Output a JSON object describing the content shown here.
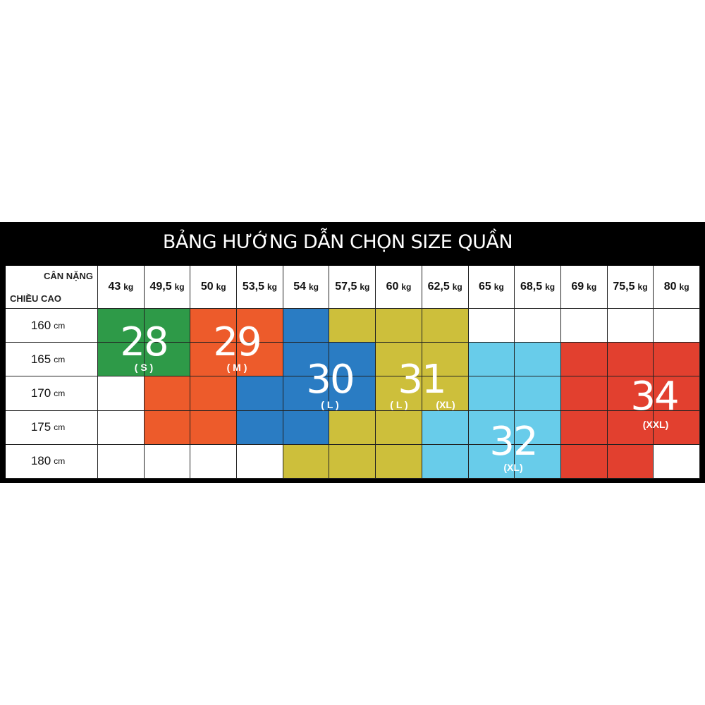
{
  "title": "BẢNG HƯỚNG DẪN CHỌN SIZE QUẦN",
  "header": {
    "weight_label": "CÂN NẶNG",
    "height_label": "CHIỀU CAO"
  },
  "colors": {
    "S": "#2e9a48",
    "M": "#ed5b2b",
    "L": "#2a7cc3",
    "Y": "#cdbf3b",
    "XL": "#68ccea",
    "XXL": "#e2402f",
    "W": "#ffffff"
  },
  "chart_data": {
    "type": "table",
    "title": "BẢNG HƯỚNG DẪN CHỌN SIZE QUẦN",
    "columns": [
      {
        "value": "43",
        "unit": "kg"
      },
      {
        "value": "49,5",
        "unit": "kg"
      },
      {
        "value": "50",
        "unit": "kg"
      },
      {
        "value": "53,5",
        "unit": "kg"
      },
      {
        "value": "54",
        "unit": "kg"
      },
      {
        "value": "57,5",
        "unit": "kg"
      },
      {
        "value": "60",
        "unit": "kg"
      },
      {
        "value": "62,5",
        "unit": "kg"
      },
      {
        "value": "65",
        "unit": "kg"
      },
      {
        "value": "68,5",
        "unit": "kg"
      },
      {
        "value": "69",
        "unit": "kg"
      },
      {
        "value": "75,5",
        "unit": "kg"
      },
      {
        "value": "80",
        "unit": "kg"
      }
    ],
    "rows": [
      {
        "value": "160",
        "unit": "cm",
        "cells": [
          "S",
          "S",
          "M",
          "M",
          "L",
          "Y",
          "Y",
          "Y",
          "W",
          "W",
          "W",
          "W",
          "W"
        ]
      },
      {
        "value": "165",
        "unit": "cm",
        "cells": [
          "S",
          "S",
          "M",
          "M",
          "L",
          "L",
          "Y",
          "Y",
          "XL",
          "XL",
          "XXL",
          "XXL",
          "XXL"
        ]
      },
      {
        "value": "170",
        "unit": "cm",
        "cells": [
          "W",
          "M",
          "M",
          "L",
          "L",
          "L",
          "Y",
          "Y",
          "XL",
          "XL",
          "XXL",
          "XXL",
          "XXL"
        ]
      },
      {
        "value": "175",
        "unit": "cm",
        "cells": [
          "W",
          "M",
          "M",
          "L",
          "L",
          "Y",
          "Y",
          "XL",
          "XL",
          "XL",
          "XXL",
          "XXL",
          "XXL"
        ]
      },
      {
        "value": "180",
        "unit": "cm",
        "cells": [
          "W",
          "W",
          "W",
          "W",
          "Y",
          "Y",
          "Y",
          "XL",
          "XL",
          "XL",
          "XXL",
          "XXL",
          "W"
        ]
      }
    ],
    "size_labels": [
      {
        "size": "28",
        "letter": "( S )"
      },
      {
        "size": "29",
        "letter": "( M )"
      },
      {
        "size": "30",
        "letter": "( L )"
      },
      {
        "size": "31",
        "letter": "( L )",
        "letter2": "(XL)"
      },
      {
        "size": "32",
        "letter": "(XL)"
      },
      {
        "size": "34",
        "letter": "(XXL)"
      }
    ]
  }
}
